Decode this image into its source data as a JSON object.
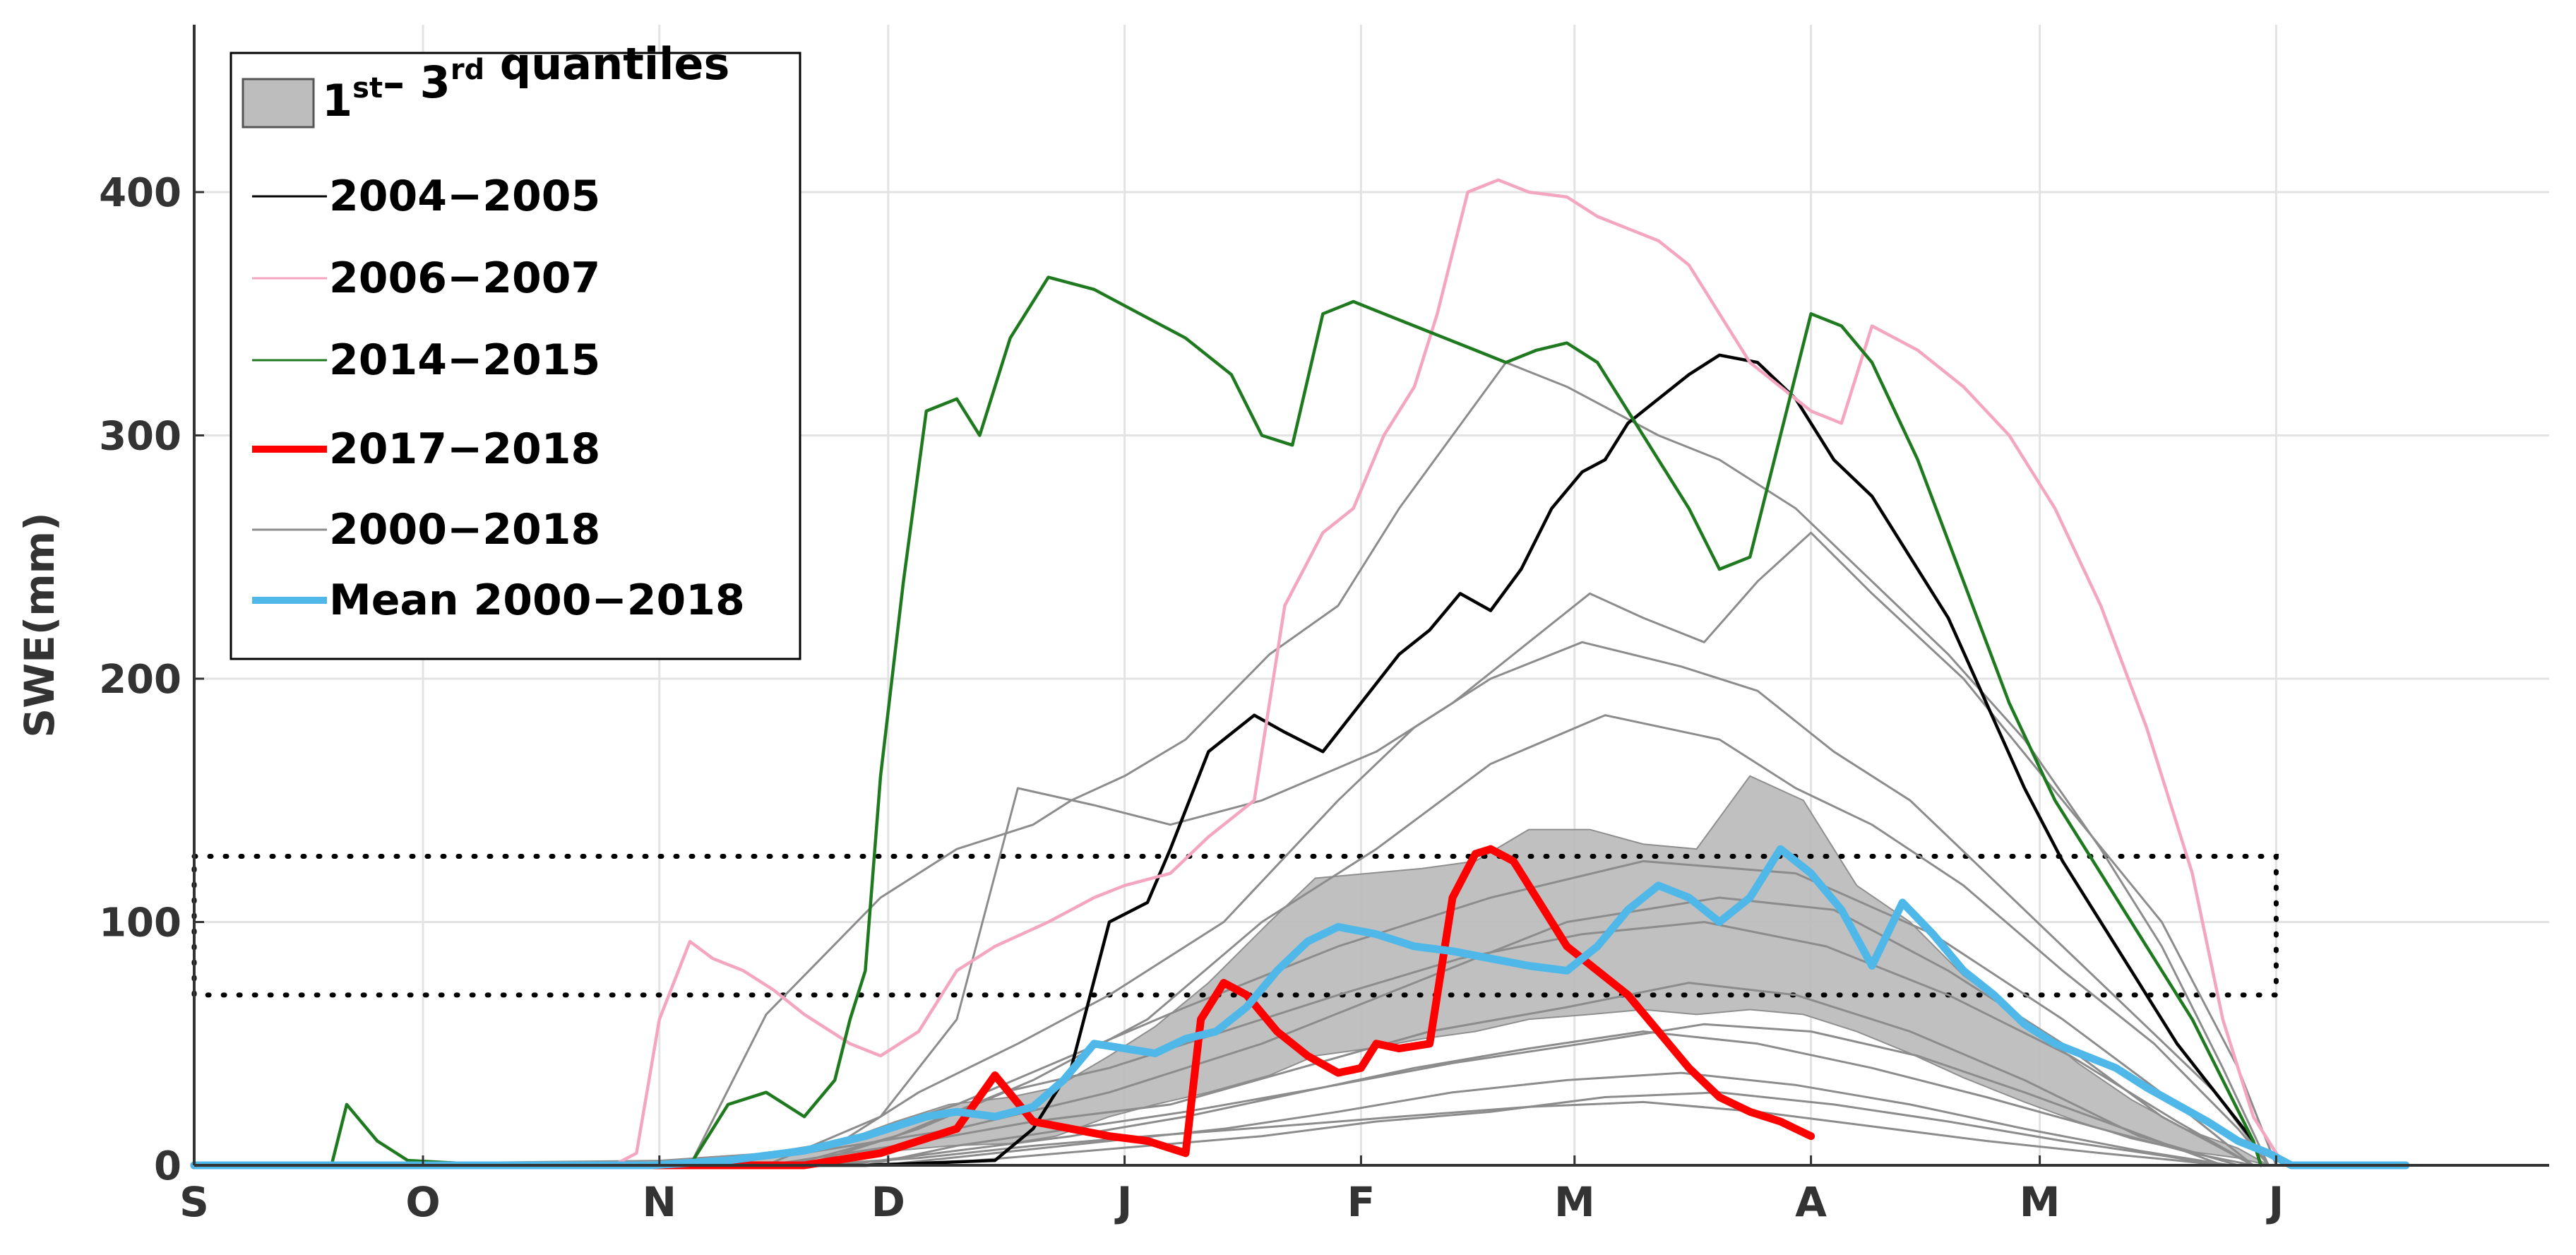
{
  "chart_data": {
    "type": "line",
    "ylabel": "SWE(mm)",
    "xlabel": "",
    "ylim": [
      0,
      460
    ],
    "x_domain_days": [
      0,
      317
    ],
    "x_ticks": [
      {
        "label": "S",
        "day": 0
      },
      {
        "label": "O",
        "day": 30
      },
      {
        "label": "N",
        "day": 61
      },
      {
        "label": "D",
        "day": 91
      },
      {
        "label": "J",
        "day": 122
      },
      {
        "label": "F",
        "day": 153
      },
      {
        "label": "M",
        "day": 181
      },
      {
        "label": "A",
        "day": 212
      },
      {
        "label": "M",
        "day": 242
      },
      {
        "label": "J",
        "day": 273
      }
    ],
    "y_ticks": [
      0,
      100,
      200,
      300,
      400
    ],
    "grid": true,
    "reference_band": {
      "style": "dotted",
      "y_low": 70,
      "y_high": 127,
      "x_start_day": 0,
      "x_end_day": 273
    },
    "legend": {
      "position": "top-left",
      "entries": [
        {
          "label": "1st– 3rd quantiles",
          "kind": "patch",
          "color": "#bdbdbd"
        },
        {
          "label": "2004−2005",
          "kind": "line",
          "color": "#000000"
        },
        {
          "label": "2006−2007",
          "kind": "line",
          "color": "#f4a6c0"
        },
        {
          "label": "2014−2015",
          "kind": "line",
          "color": "#1f7a1f"
        },
        {
          "label": "2017−2018",
          "kind": "line",
          "color": "#ff0000"
        },
        {
          "label": "2000−2018",
          "kind": "line",
          "color": "#8c8c8c"
        },
        {
          "label": "Mean 2000−2018",
          "kind": "line",
          "color": "#4fb8e8"
        }
      ]
    },
    "quantile_band": {
      "name": "1st– 3rd quantiles",
      "color": "#bdbdbd",
      "x": [
        0,
        61,
        75,
        85,
        92,
        99,
        107,
        113,
        120,
        126,
        133,
        141,
        147,
        154,
        161,
        168,
        175,
        183,
        190,
        197,
        204,
        211,
        218,
        225,
        232,
        240,
        247,
        254,
        261,
        268,
        272
      ],
      "lower": [
        0,
        0,
        0,
        2,
        6,
        8,
        9,
        12,
        20,
        25,
        30,
        37,
        45,
        48,
        52,
        55,
        60,
        62,
        64,
        62,
        64,
        62,
        55,
        46,
        36,
        26,
        18,
        11,
        6,
        3,
        0
      ],
      "upper": [
        0,
        2,
        5,
        10,
        18,
        25,
        28,
        32,
        45,
        57,
        75,
        100,
        118,
        120,
        122,
        125,
        138,
        138,
        132,
        130,
        160,
        150,
        115,
        100,
        78,
        60,
        42,
        27,
        15,
        7,
        0
      ]
    },
    "series": [
      {
        "name": "2000−2018",
        "role": "member",
        "color": "#8c8c8c",
        "x": [
          0,
          65,
          75,
          90,
          100,
          110,
          115,
          122,
          130,
          141,
          150,
          158,
          165,
          172,
          180,
          186,
          192,
          200,
          210,
          220,
          230,
          240,
          250,
          258,
          266,
          272
        ],
        "values": [
          0,
          0,
          62,
          110,
          130,
          140,
          150,
          160,
          175,
          210,
          230,
          270,
          300,
          330,
          320,
          310,
          300,
          290,
          270,
          240,
          210,
          175,
          130,
          90,
          40,
          0
        ]
      },
      {
        "name": "2000−2018",
        "role": "member",
        "color": "#8c8c8c",
        "x": [
          0,
          75,
          90,
          100,
          108,
          118,
          128,
          140,
          155,
          165,
          175,
          183,
          190,
          198,
          205,
          212,
          220,
          232,
          245,
          258,
          268,
          273
        ],
        "values": [
          0,
          0,
          20,
          60,
          155,
          148,
          140,
          150,
          170,
          190,
          215,
          235,
          225,
          215,
          240,
          260,
          235,
          200,
          150,
          100,
          40,
          0
        ]
      },
      {
        "name": "2000−2018",
        "role": "member",
        "color": "#8c8c8c",
        "x": [
          0,
          70,
          85,
          95,
          108,
          120,
          135,
          150,
          160,
          170,
          182,
          195,
          205,
          215,
          225,
          235,
          245,
          255,
          265,
          272
        ],
        "values": [
          0,
          0,
          10,
          30,
          50,
          70,
          100,
          150,
          180,
          200,
          215,
          205,
          195,
          170,
          150,
          120,
          90,
          60,
          30,
          0
        ]
      },
      {
        "name": "2000−2018",
        "role": "member",
        "color": "#8c8c8c",
        "x": [
          0,
          80,
          95,
          110,
          125,
          140,
          155,
          170,
          185,
          200,
          210,
          220,
          232,
          245,
          257,
          268,
          272
        ],
        "values": [
          0,
          0,
          15,
          35,
          60,
          100,
          130,
          165,
          185,
          175,
          155,
          140,
          115,
          80,
          50,
          15,
          0
        ]
      },
      {
        "name": "2000−2018",
        "role": "member",
        "color": "#8c8c8c",
        "x": [
          0,
          60,
          80,
          100,
          120,
          140,
          160,
          180,
          200,
          215,
          230,
          245,
          258,
          270
        ],
        "values": [
          0,
          0,
          5,
          15,
          30,
          50,
          75,
          100,
          110,
          105,
          80,
          50,
          20,
          0
        ]
      },
      {
        "name": "2000−2018",
        "role": "member",
        "color": "#8c8c8c",
        "x": [
          0,
          75,
          92,
          110,
          128,
          145,
          162,
          180,
          196,
          210,
          225,
          240,
          255,
          268
        ],
        "values": [
          0,
          0,
          8,
          18,
          25,
          40,
          55,
          65,
          75,
          70,
          55,
          35,
          12,
          0
        ]
      },
      {
        "name": "2000−2018",
        "role": "member",
        "color": "#8c8c8c",
        "x": [
          0,
          85,
          100,
          115,
          130,
          145,
          160,
          175,
          190,
          205,
          220,
          235,
          250,
          262,
          270
        ],
        "values": [
          0,
          0,
          6,
          12,
          20,
          30,
          40,
          48,
          55,
          50,
          40,
          28,
          15,
          5,
          0
        ]
      },
      {
        "name": "2000−2018",
        "role": "member",
        "color": "#8c8c8c",
        "x": [
          0,
          90,
          105,
          120,
          135,
          150,
          165,
          180,
          195,
          210,
          225,
          240,
          255,
          267
        ],
        "values": [
          0,
          0,
          5,
          10,
          15,
          22,
          30,
          35,
          38,
          33,
          25,
          15,
          6,
          0
        ]
      },
      {
        "name": "2000−2018",
        "role": "member",
        "color": "#8c8c8c",
        "x": [
          0,
          80,
          95,
          110,
          125,
          142,
          158,
          175,
          190,
          205,
          220,
          235,
          250,
          260,
          266
        ],
        "values": [
          0,
          0,
          3,
          8,
          12,
          16,
          20,
          24,
          26,
          22,
          16,
          10,
          5,
          2,
          0
        ]
      },
      {
        "name": "2000−2018",
        "role": "member",
        "color": "#8c8c8c",
        "x": [
          0,
          70,
          85,
          100,
          115,
          130,
          150,
          170,
          190,
          210,
          228,
          245,
          260,
          270
        ],
        "values": [
          0,
          0,
          10,
          25,
          45,
          65,
          90,
          110,
          125,
          120,
          95,
          60,
          25,
          0
        ]
      },
      {
        "name": "2000−2018",
        "role": "member",
        "color": "#8c8c8c",
        "x": [
          0,
          95,
          110,
          125,
          140,
          155,
          170,
          185,
          200,
          215,
          230,
          245,
          258,
          266
        ],
        "values": [
          0,
          0,
          4,
          8,
          12,
          18,
          22,
          28,
          30,
          25,
          18,
          10,
          4,
          0
        ]
      },
      {
        "name": "2000−2018",
        "role": "member",
        "color": "#8c8c8c",
        "x": [
          0,
          78,
          92,
          106,
          120,
          135,
          150,
          166,
          182,
          198,
          214,
          230,
          246,
          260,
          270
        ],
        "values": [
          0,
          0,
          12,
          30,
          40,
          55,
          70,
          85,
          95,
          100,
          90,
          70,
          45,
          18,
          0
        ]
      },
      {
        "name": "2000−2018",
        "role": "member",
        "color": "#8c8c8c",
        "x": [
          0,
          88,
          100,
          115,
          130,
          148,
          165,
          182,
          198,
          212,
          226,
          240,
          254,
          266
        ],
        "values": [
          0,
          0,
          8,
          15,
          22,
          32,
          42,
          50,
          58,
          55,
          45,
          30,
          14,
          0
        ]
      },
      {
        "name": "2004−2005",
        "role": "highlight",
        "color": "#000000",
        "x": [
          0,
          88,
          105,
          110,
          115,
          120,
          125,
          128,
          133,
          139,
          143,
          148,
          153,
          158,
          162,
          166,
          170,
          174,
          178,
          182,
          185,
          188,
          192,
          196,
          200,
          205,
          210,
          215,
          220,
          225,
          230,
          235,
          240,
          245,
          250,
          255,
          260,
          265,
          270,
          271
        ],
        "values": [
          0,
          0,
          2,
          15,
          40,
          100,
          108,
          130,
          170,
          185,
          178,
          170,
          190,
          210,
          220,
          235,
          228,
          245,
          270,
          285,
          290,
          305,
          315,
          325,
          333,
          330,
          315,
          290,
          275,
          250,
          225,
          190,
          155,
          125,
          100,
          75,
          50,
          30,
          10,
          0
        ]
      },
      {
        "name": "2006−2007",
        "role": "highlight",
        "color": "#f4a6c0",
        "x": [
          0,
          55,
          58,
          61,
          65,
          68,
          72,
          76,
          80,
          86,
          90,
          95,
          100,
          105,
          112,
          118,
          122,
          128,
          133,
          139,
          143,
          148,
          152,
          156,
          160,
          163,
          167,
          171,
          175,
          180,
          184,
          188,
          192,
          196,
          200,
          204,
          208,
          212,
          216,
          220,
          226,
          232,
          238,
          244,
          250,
          256,
          262,
          266,
          270,
          274
        ],
        "values": [
          0,
          0,
          5,
          60,
          92,
          85,
          80,
          72,
          62,
          50,
          45,
          55,
          80,
          90,
          100,
          110,
          115,
          120,
          135,
          150,
          230,
          260,
          270,
          300,
          320,
          350,
          400,
          405,
          400,
          398,
          390,
          385,
          380,
          370,
          350,
          330,
          320,
          310,
          305,
          345,
          335,
          320,
          300,
          270,
          230,
          180,
          120,
          60,
          20,
          0
        ]
      },
      {
        "name": "2014−2015",
        "role": "highlight",
        "color": "#1f7a1f",
        "x": [
          0,
          18,
          20,
          24,
          28,
          40,
          65,
          70,
          75,
          80,
          84,
          86,
          88,
          90,
          93,
          96,
          100,
          103,
          107,
          112,
          118,
          124,
          130,
          136,
          140,
          144,
          148,
          152,
          156,
          160,
          164,
          168,
          172,
          176,
          180,
          184,
          188,
          192,
          196,
          200,
          204,
          208,
          212,
          216,
          220,
          226,
          232,
          238,
          244,
          250,
          256,
          262,
          266,
          270,
          271
        ],
        "values": [
          0,
          0,
          25,
          10,
          2,
          0,
          0,
          25,
          30,
          20,
          35,
          60,
          80,
          160,
          240,
          310,
          315,
          300,
          340,
          365,
          360,
          350,
          340,
          325,
          300,
          296,
          350,
          355,
          350,
          345,
          340,
          335,
          330,
          335,
          338,
          330,
          310,
          290,
          270,
          245,
          250,
          300,
          350,
          345,
          330,
          290,
          240,
          190,
          150,
          120,
          90,
          60,
          35,
          10,
          0
        ]
      },
      {
        "name": "2017−2018",
        "role": "highlight",
        "color": "#ff0000",
        "x": [
          0,
          60,
          80,
          90,
          95,
          100,
          105,
          110,
          115,
          120,
          125,
          130,
          132,
          135,
          138,
          142,
          146,
          150,
          153,
          155,
          158,
          162,
          165,
          168,
          170,
          173,
          176,
          180,
          184,
          188,
          192,
          196,
          200,
          204,
          208,
          212
        ],
        "values": [
          0,
          0,
          0,
          5,
          10,
          15,
          37,
          18,
          15,
          12,
          10,
          5,
          60,
          75,
          70,
          55,
          45,
          38,
          40,
          50,
          48,
          50,
          110,
          128,
          130,
          125,
          110,
          90,
          80,
          70,
          55,
          40,
          28,
          22,
          18,
          12
        ]
      },
      {
        "name": "Mean 2000−2018",
        "role": "mean",
        "color": "#4fb8e8",
        "x": [
          0,
          60,
          70,
          80,
          88,
          92,
          96,
          100,
          105,
          110,
          114,
          118,
          122,
          126,
          130,
          134,
          138,
          142,
          146,
          150,
          155,
          160,
          165,
          170,
          175,
          180,
          184,
          188,
          192,
          196,
          200,
          204,
          208,
          212,
          216,
          220,
          224,
          228,
          232,
          236,
          240,
          244,
          248,
          252,
          256,
          260,
          264,
          268,
          272,
          275,
          280,
          290
        ],
        "values": [
          0,
          0,
          2,
          6,
          12,
          16,
          20,
          22,
          20,
          24,
          35,
          50,
          48,
          46,
          52,
          55,
          65,
          80,
          92,
          98,
          95,
          90,
          88,
          85,
          82,
          80,
          90,
          105,
          115,
          110,
          100,
          110,
          130,
          120,
          105,
          82,
          108,
          95,
          80,
          70,
          58,
          50,
          45,
          40,
          32,
          25,
          18,
          10,
          5,
          0,
          0,
          0
        ]
      }
    ]
  }
}
